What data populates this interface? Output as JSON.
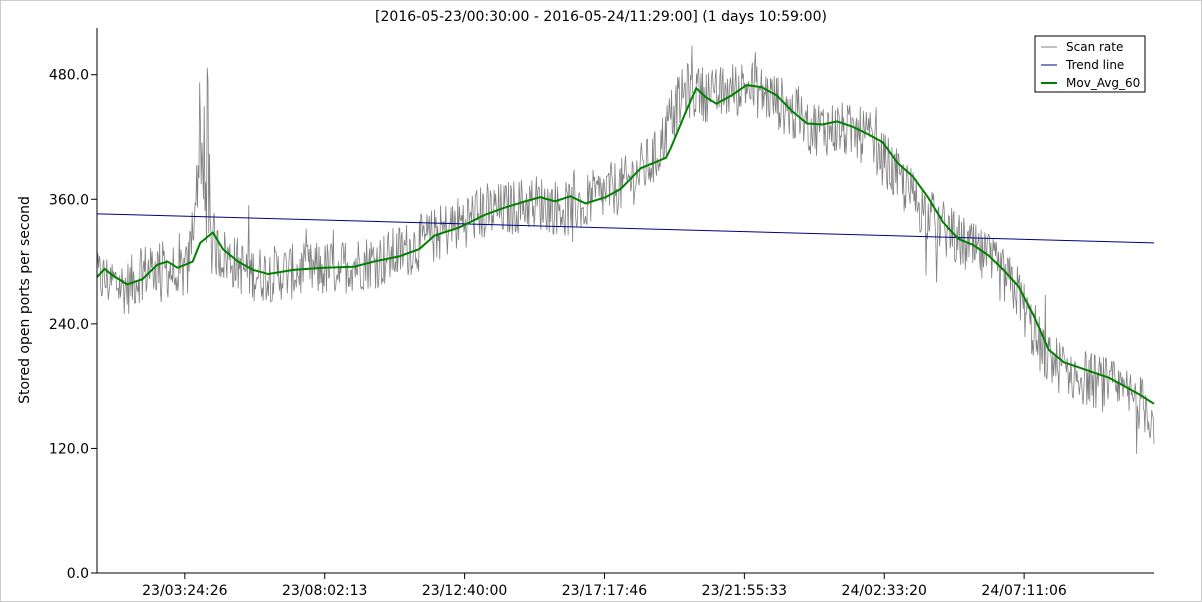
{
  "chart_data": {
    "type": "line",
    "title": "[2016-05-23/00:30:00 - 2016-05-24/11:29:00] (1 days 10:59:00)",
    "xlabel": "",
    "ylabel": "Stored open ports per second",
    "x_range": [
      "2016-05-23 00:30:00",
      "2016-05-24 11:29:00"
    ],
    "x_ticks": [
      {
        "time": "2016-05-23 03:24:26",
        "label": "23/03:24:26"
      },
      {
        "time": "2016-05-23 08:02:13",
        "label": "23/08:02:13"
      },
      {
        "time": "2016-05-23 12:40:00",
        "label": "23/12:40:00"
      },
      {
        "time": "2016-05-23 17:17:46",
        "label": "23/17:17:46"
      },
      {
        "time": "2016-05-23 21:55:33",
        "label": "23/21:55:33"
      },
      {
        "time": "2016-05-24 02:33:20",
        "label": "24/02:33:20"
      },
      {
        "time": "2016-05-24 07:11:06",
        "label": "24/07:11:06"
      }
    ],
    "y_ticks": [
      "0.0",
      "120.0",
      "240.0",
      "360.0",
      "480.0"
    ],
    "ylim": [
      0,
      525
    ],
    "grid": false,
    "legend_position": "top-right",
    "series": [
      {
        "name": "Scan rate",
        "color": "#808080",
        "style": "noisy-line",
        "points": [
          [
            "2016-05-23 00:30:00",
            285
          ],
          [
            "2016-05-23 01:00:00",
            280
          ],
          [
            "2016-05-23 01:30:00",
            275
          ],
          [
            "2016-05-23 02:00:00",
            290
          ],
          [
            "2016-05-23 02:30:00",
            295
          ],
          [
            "2016-05-23 03:00:00",
            290
          ],
          [
            "2016-05-23 03:30:00",
            290
          ],
          [
            "2016-05-23 03:50:00",
            380
          ],
          [
            "2016-05-23 04:10:00",
            320
          ],
          [
            "2016-05-23 04:30:00",
            310
          ],
          [
            "2016-05-23 05:00:00",
            300
          ],
          [
            "2016-05-23 05:30:00",
            290
          ],
          [
            "2016-05-23 06:00:00",
            288
          ],
          [
            "2016-05-23 07:00:00",
            290
          ],
          [
            "2016-05-23 08:00:00",
            292
          ],
          [
            "2016-05-23 09:00:00",
            298
          ],
          [
            "2016-05-23 10:00:00",
            302
          ],
          [
            "2016-05-23 11:00:00",
            315
          ],
          [
            "2016-05-23 12:00:00",
            330
          ],
          [
            "2016-05-23 13:00:00",
            345
          ],
          [
            "2016-05-23 14:00:00",
            350
          ],
          [
            "2016-05-23 15:00:00",
            358
          ],
          [
            "2016-05-23 16:00:00",
            350
          ],
          [
            "2016-05-23 17:00:00",
            362
          ],
          [
            "2016-05-23 18:00:00",
            375
          ],
          [
            "2016-05-23 19:00:00",
            400
          ],
          [
            "2016-05-23 19:30:00",
            440
          ],
          [
            "2016-05-23 20:00:00",
            465
          ],
          [
            "2016-05-23 21:00:00",
            460
          ],
          [
            "2016-05-23 22:00:00",
            470
          ],
          [
            "2016-05-23 23:00:00",
            455
          ],
          [
            "2016-05-24 00:00:00",
            430
          ],
          [
            "2016-05-24 01:00:00",
            428
          ],
          [
            "2016-05-24 02:00:00",
            420
          ],
          [
            "2016-05-24 03:00:00",
            380
          ],
          [
            "2016-05-24 04:00:00",
            345
          ],
          [
            "2016-05-24 05:00:00",
            320
          ],
          [
            "2016-05-24 06:00:00",
            300
          ],
          [
            "2016-05-24 07:00:00",
            270
          ],
          [
            "2016-05-24 07:30:00",
            230
          ],
          [
            "2016-05-24 08:00:00",
            205
          ],
          [
            "2016-05-24 09:00:00",
            190
          ],
          [
            "2016-05-24 10:00:00",
            180
          ],
          [
            "2016-05-24 11:00:00",
            165
          ],
          [
            "2016-05-24 11:29:00",
            150
          ]
        ]
      },
      {
        "name": "Trend line",
        "color": "#00008b",
        "points": [
          [
            "2016-05-23 00:30:00",
            346
          ],
          [
            "2016-05-24 11:29:00",
            318
          ]
        ]
      },
      {
        "name": "Mov_Avg_60",
        "color": "#008000",
        "points": [
          [
            "2016-05-23 00:30:00",
            285
          ],
          [
            "2016-05-23 00:45:00",
            293
          ],
          [
            "2016-05-23 01:00:00",
            287
          ],
          [
            "2016-05-23 01:30:00",
            278
          ],
          [
            "2016-05-23 02:00:00",
            283
          ],
          [
            "2016-05-23 02:30:00",
            297
          ],
          [
            "2016-05-23 02:50:00",
            300
          ],
          [
            "2016-05-23 03:10:00",
            294
          ],
          [
            "2016-05-23 03:40:00",
            300
          ],
          [
            "2016-05-23 03:55:00",
            318
          ],
          [
            "2016-05-23 04:10:00",
            324
          ],
          [
            "2016-05-23 04:20:00",
            328
          ],
          [
            "2016-05-23 04:40:00",
            312
          ],
          [
            "2016-05-23 05:10:00",
            300
          ],
          [
            "2016-05-23 05:40:00",
            292
          ],
          [
            "2016-05-23 06:10:00",
            288
          ],
          [
            "2016-05-23 07:00:00",
            292
          ],
          [
            "2016-05-23 08:00:00",
            294
          ],
          [
            "2016-05-23 09:00:00",
            295
          ],
          [
            "2016-05-23 09:40:00",
            300
          ],
          [
            "2016-05-23 10:30:00",
            305
          ],
          [
            "2016-05-23 11:10:00",
            312
          ],
          [
            "2016-05-23 11:40:00",
            325
          ],
          [
            "2016-05-23 12:30:00",
            333
          ],
          [
            "2016-05-23 13:20:00",
            345
          ],
          [
            "2016-05-23 14:00:00",
            352
          ],
          [
            "2016-05-23 14:40:00",
            358
          ],
          [
            "2016-05-23 15:10:00",
            362
          ],
          [
            "2016-05-23 15:40:00",
            358
          ],
          [
            "2016-05-23 16:10:00",
            363
          ],
          [
            "2016-05-23 16:40:00",
            356
          ],
          [
            "2016-05-23 17:20:00",
            362
          ],
          [
            "2016-05-23 17:50:00",
            370
          ],
          [
            "2016-05-23 18:30:00",
            390
          ],
          [
            "2016-05-23 19:00:00",
            396
          ],
          [
            "2016-05-23 19:20:00",
            400
          ],
          [
            "2016-05-23 19:30:00",
            410
          ],
          [
            "2016-05-23 20:00:00",
            445
          ],
          [
            "2016-05-23 20:20:00",
            467
          ],
          [
            "2016-05-23 20:40:00",
            458
          ],
          [
            "2016-05-23 21:00:00",
            452
          ],
          [
            "2016-05-23 21:30:00",
            460
          ],
          [
            "2016-05-23 22:00:00",
            470
          ],
          [
            "2016-05-23 22:30:00",
            468
          ],
          [
            "2016-05-23 23:00:00",
            460
          ],
          [
            "2016-05-23 23:30:00",
            445
          ],
          [
            "2016-05-24 00:00:00",
            433
          ],
          [
            "2016-05-24 00:30:00",
            432
          ],
          [
            "2016-05-24 01:00:00",
            435
          ],
          [
            "2016-05-24 01:30:00",
            430
          ],
          [
            "2016-05-24 02:00:00",
            423
          ],
          [
            "2016-05-24 02:30:00",
            415
          ],
          [
            "2016-05-24 03:00:00",
            395
          ],
          [
            "2016-05-24 03:30:00",
            382
          ],
          [
            "2016-05-24 04:00:00",
            362
          ],
          [
            "2016-05-24 04:30:00",
            338
          ],
          [
            "2016-05-24 05:00:00",
            322
          ],
          [
            "2016-05-24 05:30:00",
            316
          ],
          [
            "2016-05-24 06:00:00",
            306
          ],
          [
            "2016-05-24 06:30:00",
            292
          ],
          [
            "2016-05-24 07:00:00",
            276
          ],
          [
            "2016-05-24 07:30:00",
            248
          ],
          [
            "2016-05-24 08:00:00",
            215
          ],
          [
            "2016-05-24 08:30:00",
            203
          ],
          [
            "2016-05-24 09:00:00",
            198
          ],
          [
            "2016-05-24 09:30:00",
            193
          ],
          [
            "2016-05-24 10:00:00",
            188
          ],
          [
            "2016-05-24 10:30:00",
            180
          ],
          [
            "2016-05-24 11:00:00",
            172
          ],
          [
            "2016-05-24 11:29:00",
            163
          ]
        ]
      }
    ]
  }
}
